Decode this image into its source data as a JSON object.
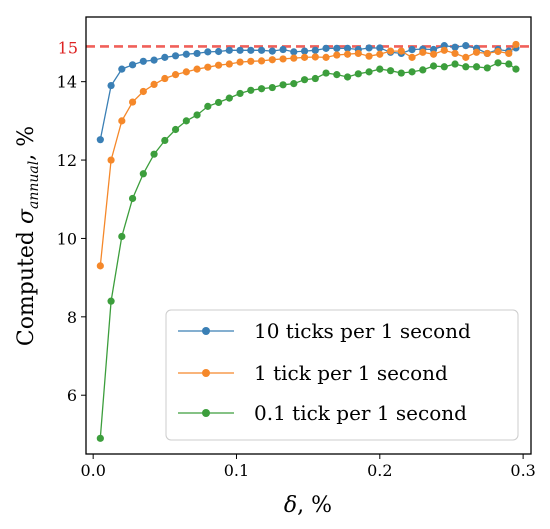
{
  "chart_data": {
    "type": "line",
    "xlabel_var": "δ",
    "xlabel_unit": ", %",
    "ylabel_prefix": "Computed ",
    "ylabel_var": "σ",
    "ylabel_sub": "annual",
    "ylabel_unit": ", %",
    "xlim": [
      -0.005,
      0.3055
    ],
    "ylim": [
      4.5,
      15.65
    ],
    "xticks": [
      0.0,
      0.1,
      0.2,
      0.3
    ],
    "xtick_labels": [
      "0.0",
      "0.1",
      "0.2",
      "0.3"
    ],
    "yticks": [
      6,
      8,
      10,
      12,
      14
    ],
    "ytick_labels": [
      "6",
      "8",
      "10",
      "12",
      "14"
    ],
    "reference_line": {
      "y": 14.9,
      "label": "15",
      "color": "#f0605a"
    },
    "legend_position": "lower-right",
    "x": [
      0.005,
      0.0125,
      0.02,
      0.0275,
      0.035,
      0.0425,
      0.05,
      0.0575,
      0.065,
      0.0725,
      0.08,
      0.0875,
      0.095,
      0.1025,
      0.11,
      0.1175,
      0.125,
      0.1325,
      0.14,
      0.1475,
      0.155,
      0.1625,
      0.17,
      0.1775,
      0.185,
      0.1925,
      0.2,
      0.2075,
      0.215,
      0.2225,
      0.23,
      0.2375,
      0.245,
      0.2525,
      0.26,
      0.2675,
      0.275,
      0.2825,
      0.29,
      0.295
    ],
    "series": [
      {
        "name": "10 ticks per 1 second",
        "color": "#3a7fb5",
        "values": [
          12.52,
          13.9,
          14.32,
          14.43,
          14.52,
          14.55,
          14.62,
          14.66,
          14.7,
          14.72,
          14.76,
          14.77,
          14.8,
          14.8,
          14.8,
          14.8,
          14.78,
          14.82,
          14.76,
          14.78,
          14.8,
          14.85,
          14.85,
          14.85,
          14.82,
          14.86,
          14.86,
          14.75,
          14.72,
          14.82,
          14.83,
          14.82,
          14.92,
          14.88,
          14.92,
          14.85,
          14.72,
          14.82,
          14.78,
          14.86
        ]
      },
      {
        "name": "1 tick per 1 second",
        "color": "#f5882a",
        "values": [
          9.3,
          12.0,
          13.0,
          13.48,
          13.75,
          13.93,
          14.08,
          14.18,
          14.25,
          14.32,
          14.37,
          14.42,
          14.45,
          14.5,
          14.52,
          14.53,
          14.56,
          14.58,
          14.6,
          14.62,
          14.63,
          14.62,
          14.68,
          14.7,
          14.72,
          14.65,
          14.7,
          14.78,
          14.78,
          14.62,
          14.75,
          14.7,
          14.8,
          14.72,
          14.62,
          14.75,
          14.72,
          14.77,
          14.72,
          14.95
        ]
      },
      {
        "name": "0.1 tick per 1 second",
        "color": "#3c9e3c",
        "values": [
          4.9,
          8.4,
          10.05,
          11.02,
          11.65,
          12.15,
          12.5,
          12.78,
          13.0,
          13.15,
          13.37,
          13.47,
          13.58,
          13.7,
          13.78,
          13.82,
          13.85,
          13.92,
          13.95,
          14.05,
          14.08,
          14.22,
          14.18,
          14.12,
          14.2,
          14.25,
          14.32,
          14.28,
          14.22,
          14.25,
          14.3,
          14.4,
          14.38,
          14.45,
          14.38,
          14.38,
          14.35,
          14.48,
          14.45,
          14.32
        ]
      }
    ]
  }
}
